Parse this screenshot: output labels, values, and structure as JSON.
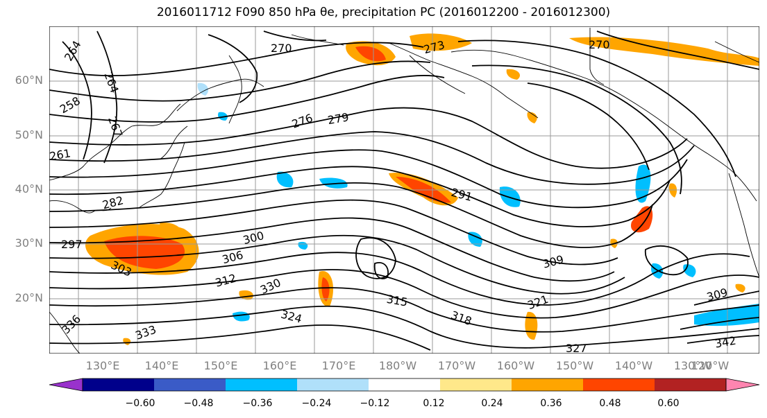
{
  "title": "2016011712 F090 850 hPa θe, precipitation PC (2016012200 - 2016012300)",
  "lat_labels": [
    "60°N",
    "50°N",
    "40°N",
    "30°N",
    "20°N"
  ],
  "lon_labels": [
    "130°E",
    "140°E",
    "150°E",
    "160°E",
    "170°E",
    "180°W",
    "170°W",
    "160°W",
    "150°W",
    "140°W",
    "130°W",
    "120°W"
  ],
  "contour_labels": [
    "264",
    "270",
    "273",
    "264",
    "267",
    "258",
    "261",
    "276",
    "279",
    "282",
    "291",
    "297",
    "300",
    "303",
    "306",
    "309",
    "312",
    "315",
    "318",
    "321",
    "324",
    "327",
    "330",
    "333",
    "336",
    "309",
    "342",
    "270"
  ],
  "colorbar": {
    "colors": [
      "#9932cc",
      "#00008b",
      "#3a5bc7",
      "#00bfff",
      "#b0e0fa",
      "#ffffff",
      "#ffe88a",
      "#ffa500",
      "#ff4500",
      "#b22222",
      "#ff85b0"
    ],
    "ticks": [
      "−0.60",
      "−0.48",
      "−0.36",
      "−0.24",
      "−0.12",
      "0.12",
      "0.24",
      "0.36",
      "0.48",
      "0.60"
    ]
  }
}
